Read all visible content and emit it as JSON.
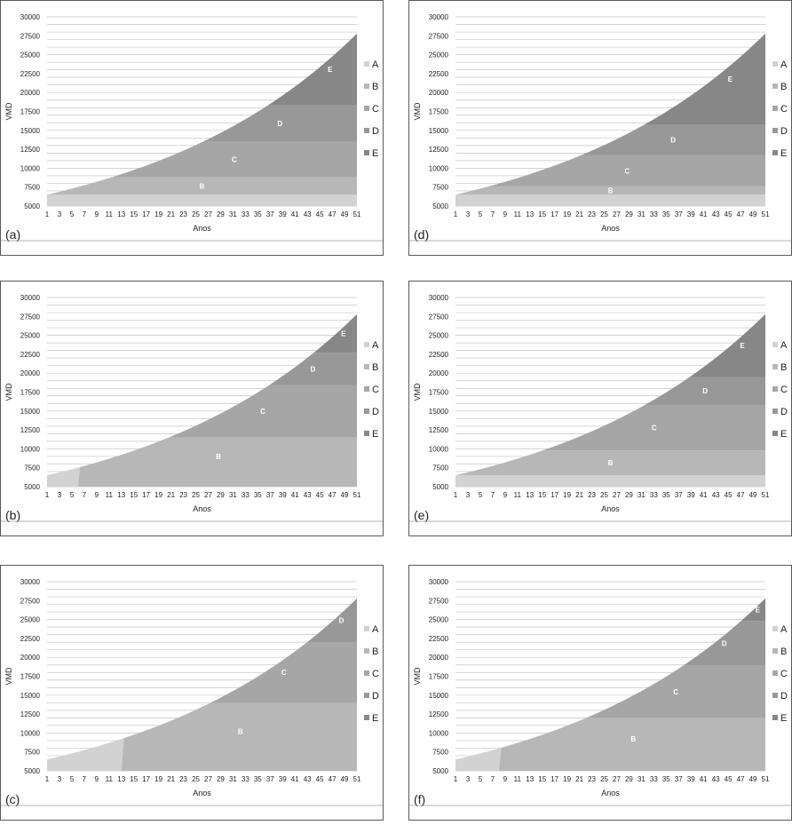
{
  "colors": {
    "A": "#d2d2d2",
    "B": "#b7b7b7",
    "C": "#a6a6a6",
    "D": "#989898",
    "E": "#878787",
    "grid": "#c4c4c4"
  },
  "legend": [
    "A",
    "B",
    "C",
    "D",
    "E"
  ],
  "chart_data": [
    {
      "type": "area",
      "panel": "(a)",
      "xlabel": "Anos",
      "ylabel": "VMD",
      "x": [
        1,
        51
      ],
      "xticks": [
        1,
        3,
        5,
        7,
        9,
        11,
        13,
        15,
        17,
        19,
        21,
        23,
        25,
        27,
        29,
        31,
        33,
        35,
        37,
        39,
        41,
        43,
        45,
        47,
        49,
        51
      ],
      "yticks": [
        5000,
        7500,
        10000,
        12500,
        15000,
        17500,
        20000,
        22500,
        25000,
        27500,
        30000
      ],
      "ylim": [
        5000,
        30000
      ],
      "curve": {
        "start": 6500,
        "end": 27800
      },
      "bands": [
        {
          "name": "A",
          "top": 6500,
          "label": ""
        },
        {
          "name": "B",
          "top": 8800,
          "label": "B"
        },
        {
          "name": "C",
          "top": 13500,
          "label": "C"
        },
        {
          "name": "D",
          "top": 18300,
          "label": "D"
        },
        {
          "name": "E",
          "top": 30000,
          "label": "E"
        }
      ]
    },
    {
      "type": "area",
      "panel": "(b)",
      "xlabel": "Anos",
      "ylabel": "VMD",
      "x": [
        1,
        51
      ],
      "xticks": [
        1,
        3,
        5,
        7,
        9,
        11,
        13,
        15,
        17,
        19,
        21,
        23,
        25,
        27,
        29,
        31,
        33,
        35,
        37,
        39,
        41,
        43,
        45,
        47,
        49,
        51
      ],
      "yticks": [
        5000,
        7500,
        10000,
        12500,
        15000,
        17500,
        20000,
        22500,
        25000,
        27500,
        30000
      ],
      "ylim": [
        5000,
        30000
      ],
      "curve": {
        "start": 6500,
        "end": 27800
      },
      "boundary_a_x": [
        6,
        6.3
      ],
      "bands": [
        {
          "name": "A",
          "top": 6500,
          "label": ""
        },
        {
          "name": "B",
          "top": 11500,
          "label": "B"
        },
        {
          "name": "C",
          "top": 18400,
          "label": "C"
        },
        {
          "name": "D",
          "top": 22700,
          "label": "D"
        },
        {
          "name": "E",
          "top": 30000,
          "label": "E"
        }
      ]
    },
    {
      "type": "area",
      "panel": "(c)",
      "xlabel": "Anos",
      "ylabel": "VMD",
      "x": [
        1,
        51
      ],
      "xticks": [
        1,
        3,
        5,
        7,
        9,
        11,
        13,
        15,
        17,
        19,
        21,
        23,
        25,
        27,
        29,
        31,
        33,
        35,
        37,
        39,
        41,
        43,
        45,
        47,
        49,
        51
      ],
      "yticks": [
        5000,
        7500,
        10000,
        12500,
        15000,
        17500,
        20000,
        22500,
        25000,
        27500,
        30000
      ],
      "ylim": [
        5000,
        30000
      ],
      "curve": {
        "start": 6500,
        "end": 27800
      },
      "boundary_a_x": [
        13,
        13.4
      ],
      "bands": [
        {
          "name": "A",
          "top": 6500,
          "label": ""
        },
        {
          "name": "B",
          "top": 14000,
          "label": "B"
        },
        {
          "name": "C",
          "top": 22000,
          "label": "C"
        },
        {
          "name": "D",
          "top": 30000,
          "label": "D"
        }
      ]
    },
    {
      "type": "area",
      "panel": "(d)",
      "xlabel": "Anos",
      "ylabel": "VMD",
      "x": [
        1,
        51
      ],
      "xticks": [
        1,
        3,
        5,
        7,
        9,
        11,
        13,
        15,
        17,
        19,
        21,
        23,
        25,
        27,
        29,
        31,
        33,
        35,
        37,
        39,
        41,
        43,
        45,
        47,
        49,
        51
      ],
      "yticks": [
        5000,
        7500,
        10000,
        12500,
        15000,
        17500,
        20000,
        22500,
        25000,
        27500,
        30000
      ],
      "ylim": [
        5000,
        30000
      ],
      "curve": {
        "start": 6500,
        "end": 27800
      },
      "bands": [
        {
          "name": "A",
          "top": 6500,
          "label": ""
        },
        {
          "name": "B",
          "top": 7600,
          "label": "B"
        },
        {
          "name": "C",
          "top": 11700,
          "label": "C"
        },
        {
          "name": "D",
          "top": 15800,
          "label": "D"
        },
        {
          "name": "E",
          "top": 30000,
          "label": "E"
        }
      ]
    },
    {
      "type": "area",
      "panel": "(e)",
      "xlabel": "Anos",
      "ylabel": "VMD",
      "x": [
        1,
        51
      ],
      "xticks": [
        1,
        3,
        5,
        7,
        9,
        11,
        13,
        15,
        17,
        19,
        21,
        23,
        25,
        27,
        29,
        31,
        33,
        35,
        37,
        39,
        41,
        43,
        45,
        47,
        49,
        51
      ],
      "yticks": [
        5000,
        7500,
        10000,
        12500,
        15000,
        17500,
        20000,
        22500,
        25000,
        27500,
        30000
      ],
      "ylim": [
        5000,
        30000
      ],
      "curve": {
        "start": 6500,
        "end": 27800
      },
      "bands": [
        {
          "name": "A",
          "top": 6500,
          "label": ""
        },
        {
          "name": "B",
          "top": 9800,
          "label": "B"
        },
        {
          "name": "C",
          "top": 15800,
          "label": "C"
        },
        {
          "name": "D",
          "top": 19500,
          "label": "D"
        },
        {
          "name": "E",
          "top": 30000,
          "label": "E"
        }
      ]
    },
    {
      "type": "area",
      "panel": "(f)",
      "xlabel": "Anos",
      "ylabel": "VMD",
      "x": [
        1,
        51
      ],
      "xticks": [
        1,
        3,
        5,
        7,
        9,
        11,
        13,
        15,
        17,
        19,
        21,
        23,
        25,
        27,
        29,
        31,
        33,
        35,
        37,
        39,
        41,
        43,
        45,
        47,
        49,
        51
      ],
      "yticks": [
        5000,
        7500,
        10000,
        12500,
        15000,
        17500,
        20000,
        22500,
        25000,
        27500,
        30000
      ],
      "ylim": [
        5000,
        30000
      ],
      "curve": {
        "start": 6500,
        "end": 27800
      },
      "boundary_a_x": [
        8,
        8.4
      ],
      "bands": [
        {
          "name": "A",
          "top": 6500,
          "label": ""
        },
        {
          "name": "B",
          "top": 12000,
          "label": "B"
        },
        {
          "name": "C",
          "top": 18900,
          "label": "C"
        },
        {
          "name": "D",
          "top": 24800,
          "label": "D"
        },
        {
          "name": "E",
          "top": 30000,
          "label": "E"
        }
      ]
    }
  ]
}
